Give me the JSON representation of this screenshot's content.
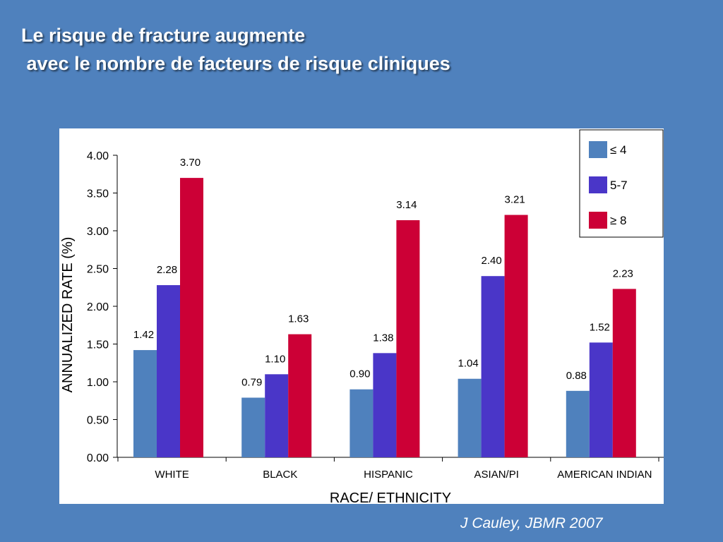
{
  "slide": {
    "title_line1": "Le risque de fracture augmente",
    "title_line2": " avec le nombre de facteurs de risque cliniques",
    "citation": "J Cauley, JBMR 2007"
  },
  "chart_data": {
    "type": "bar",
    "title": "",
    "xlabel": "RACE/ ETHNICITY",
    "ylabel": "ANNUALIZED RATE (%)",
    "ylim": [
      0,
      4
    ],
    "yticks": [
      "0.00",
      "0.50",
      "1.00",
      "1.50",
      "2.00",
      "2.50",
      "3.00",
      "3.50",
      "4.00"
    ],
    "categories": [
      "WHITE",
      "BLACK",
      "HISPANIC",
      "ASIAN/PI",
      "AMERICAN INDIAN"
    ],
    "series": [
      {
        "name": "≤ 4",
        "color": "#4f81bd",
        "values": [
          1.42,
          0.79,
          0.9,
          1.04,
          0.88
        ],
        "labels": [
          "1.42",
          "0.79",
          "0.90",
          "1.04",
          "0.88"
        ]
      },
      {
        "name": "5-7",
        "color": "#4a36c8",
        "values": [
          2.28,
          1.1,
          1.38,
          2.4,
          1.52
        ],
        "labels": [
          "2.28",
          "1.10",
          "1.38",
          "2.40",
          "1.52"
        ]
      },
      {
        "name": "≥ 8",
        "color": "#cc0036",
        "values": [
          3.7,
          1.63,
          3.14,
          3.21,
          2.23
        ],
        "labels": [
          "3.70",
          "1.63",
          "3.14",
          "3.21",
          "2.23"
        ]
      }
    ],
    "legend_position": "top-right",
    "grid": false
  }
}
